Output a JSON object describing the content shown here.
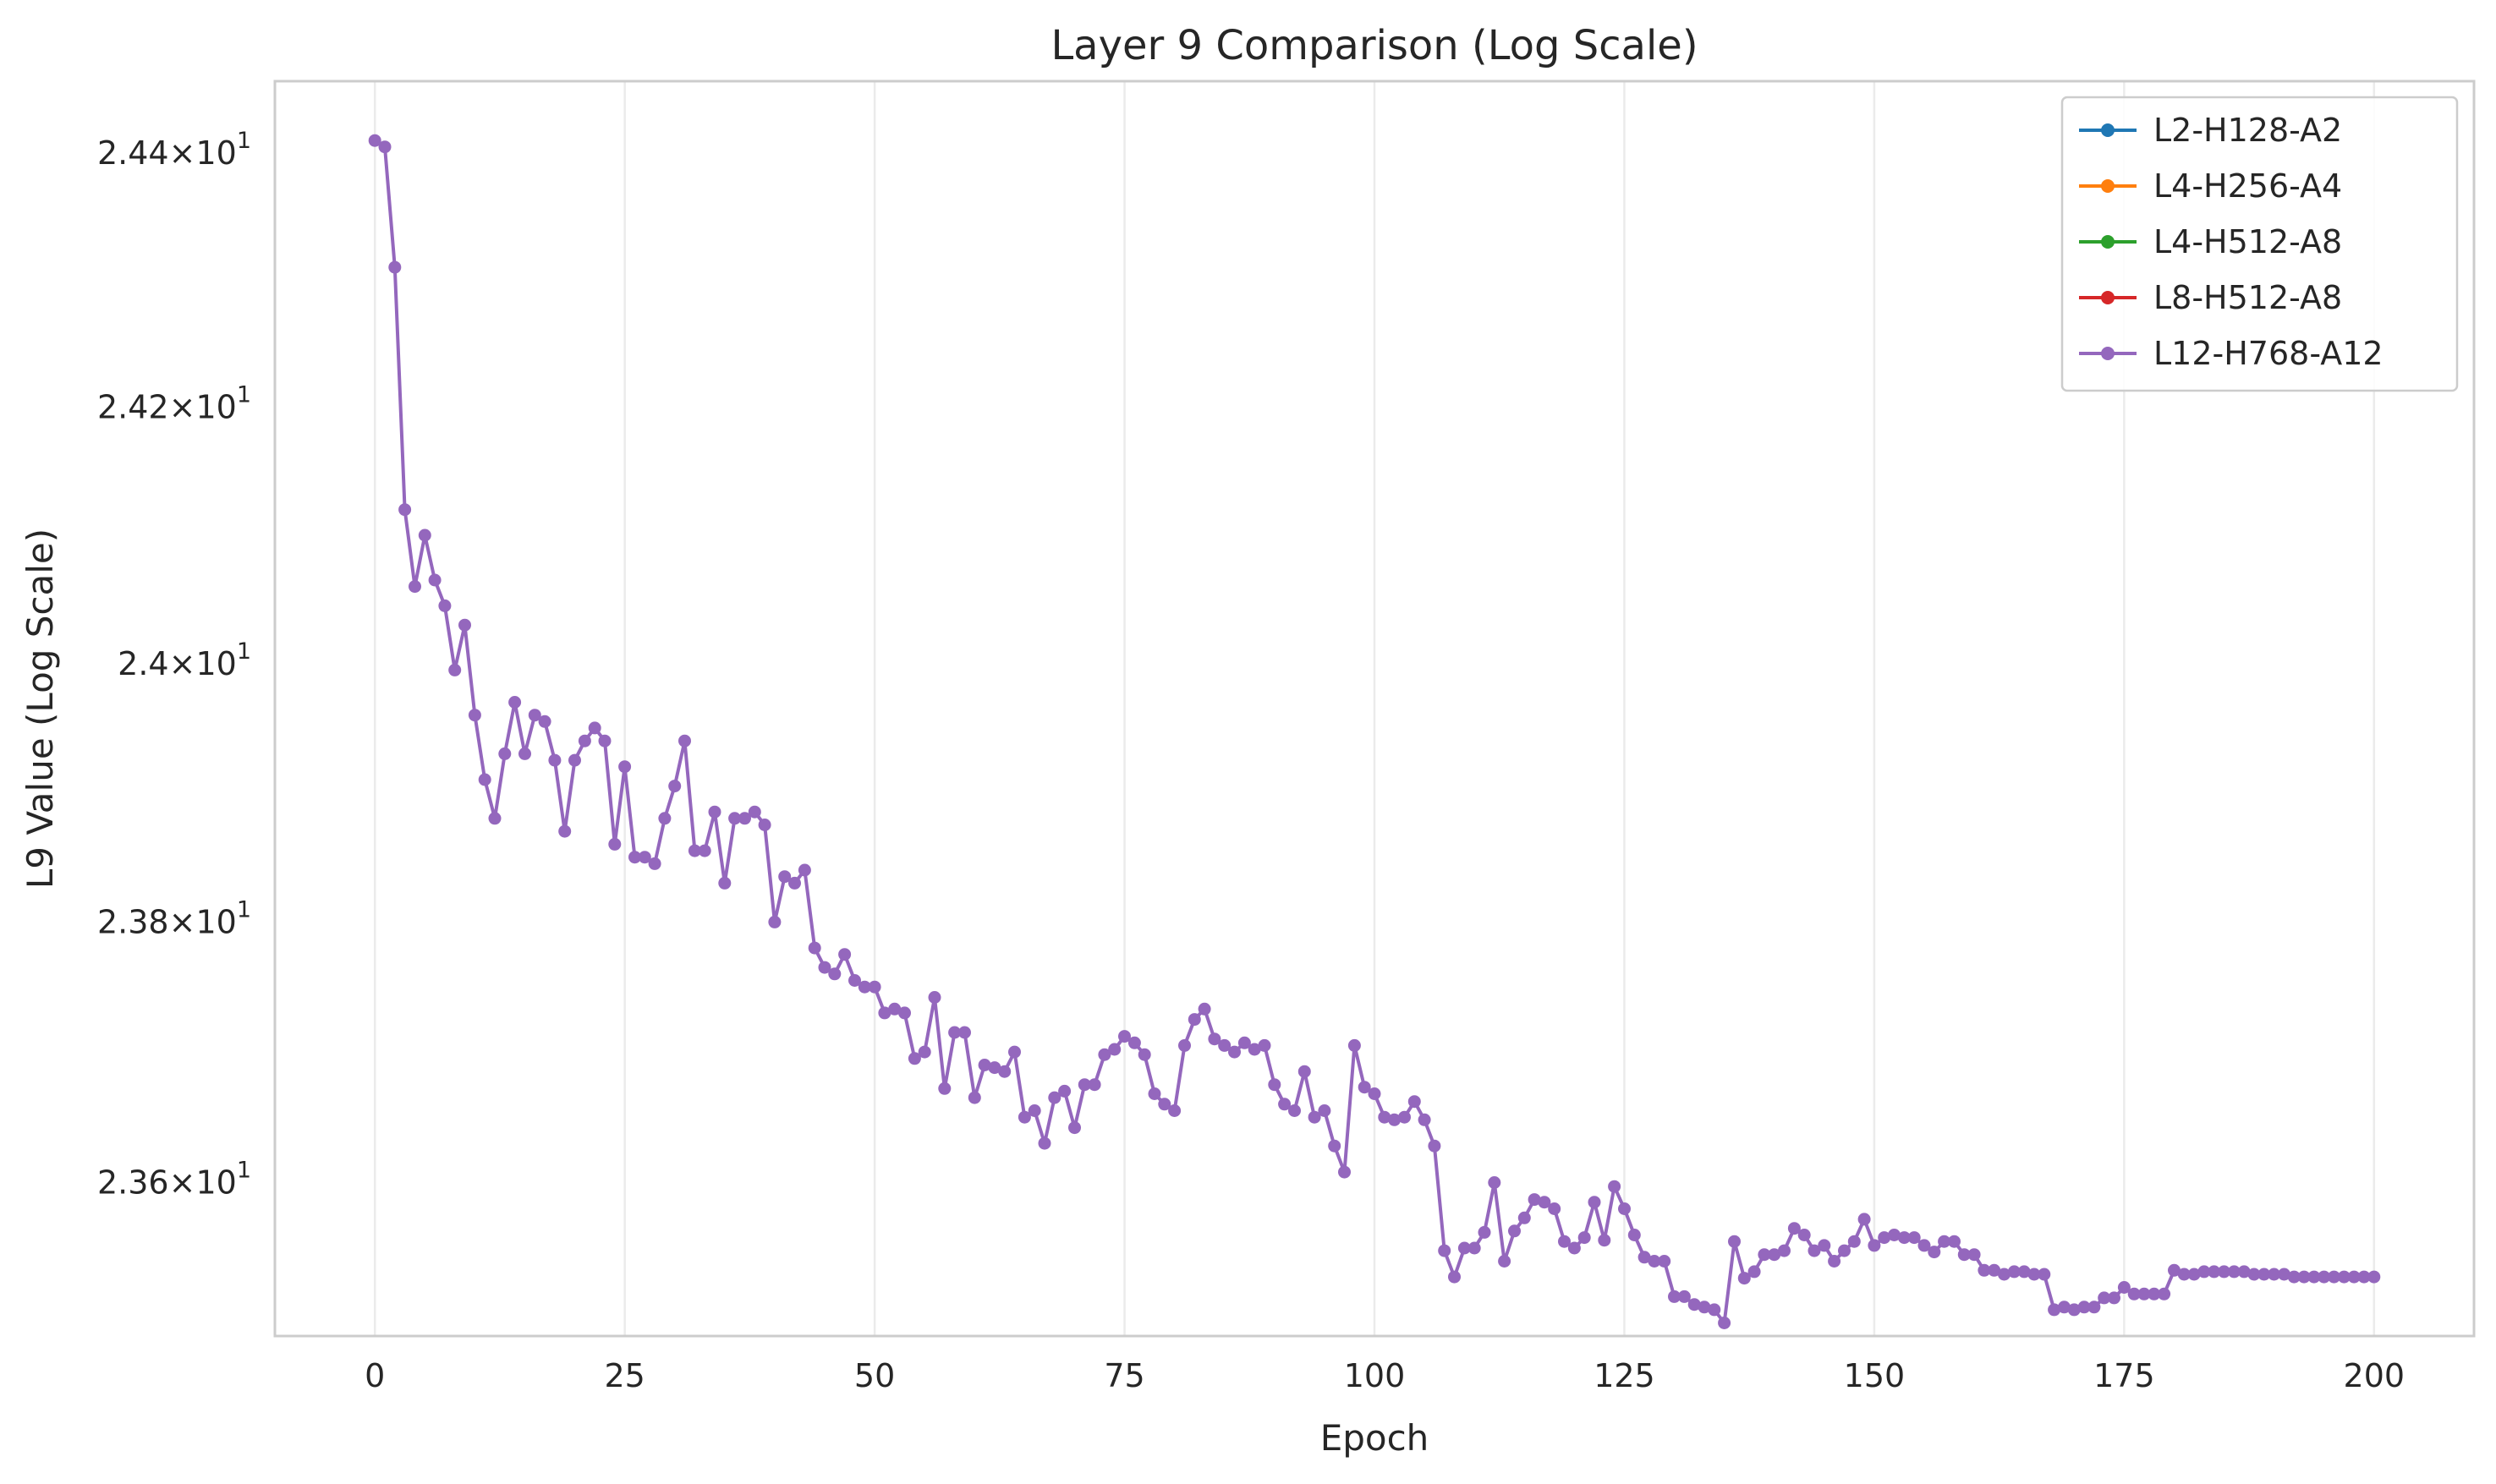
{
  "chart_data": {
    "type": "line",
    "title": "Layer 9 Comparison (Log Scale)",
    "xlabel": "Epoch",
    "ylabel": "L9 Value (Log Scale)",
    "yscale": "log",
    "xlim": [
      -10,
      210
    ],
    "ylim": [
      23.483,
      24.457
    ],
    "grid": "vertical",
    "legend_position": "top-right",
    "x_ticks": [
      0,
      25,
      50,
      75,
      100,
      125,
      150,
      175,
      200
    ],
    "x_tick_labels": [
      "0",
      "25",
      "50",
      "75",
      "100",
      "125",
      "150",
      "175",
      "200"
    ],
    "y_ticks": [
      {
        "value": 23.6,
        "mantissa": "2.36",
        "times": "×",
        "base": "10",
        "exp": "1"
      },
      {
        "value": 23.8,
        "mantissa": "2.38",
        "times": "×",
        "base": "10",
        "exp": "1"
      },
      {
        "value": 24.0,
        "mantissa": "2.4",
        "times": "×",
        "base": "10",
        "exp": "1"
      },
      {
        "value": 24.2,
        "mantissa": "2.42",
        "times": "×",
        "base": "10",
        "exp": "1"
      },
      {
        "value": 24.4,
        "mantissa": "2.44",
        "times": "×",
        "base": "10",
        "exp": "1"
      }
    ],
    "series": [
      {
        "name": "L2-H128-A2",
        "color": "#1f77b4",
        "values": []
      },
      {
        "name": "L4-H256-A4",
        "color": "#ff7f0e",
        "values": []
      },
      {
        "name": "L4-H512-A8",
        "color": "#2ca02c",
        "values": []
      },
      {
        "name": "L8-H512-A8",
        "color": "#d62728",
        "values": []
      },
      {
        "name": "L12-H768-A12",
        "color": "#9467bd",
        "values": [
          24.41,
          24.405,
          24.31,
          24.12,
          24.06,
          24.1,
          24.065,
          24.045,
          23.995,
          24.03,
          23.96,
          23.91,
          23.88,
          23.93,
          23.97,
          23.93,
          23.96,
          23.955,
          23.925,
          23.87,
          23.925,
          23.94,
          23.95,
          23.94,
          23.86,
          23.92,
          23.85,
          23.85,
          23.845,
          23.88,
          23.905,
          23.94,
          23.855,
          23.855,
          23.885,
          23.83,
          23.88,
          23.88,
          23.885,
          23.875,
          23.8,
          23.835,
          23.83,
          23.84,
          23.78,
          23.765,
          23.76,
          23.775,
          23.755,
          23.75,
          23.75,
          23.73,
          23.733,
          23.73,
          23.695,
          23.7,
          23.742,
          23.672,
          23.715,
          23.715,
          23.665,
          23.69,
          23.688,
          23.685,
          23.7,
          23.65,
          23.655,
          23.63,
          23.665,
          23.67,
          23.642,
          23.675,
          23.675,
          23.698,
          23.702,
          23.712,
          23.707,
          23.698,
          23.668,
          23.66,
          23.655,
          23.705,
          23.725,
          23.733,
          23.71,
          23.705,
          23.7,
          23.707,
          23.702,
          23.705,
          23.675,
          23.66,
          23.655,
          23.685,
          23.65,
          23.655,
          23.628,
          23.608,
          23.705,
          23.673,
          23.668,
          23.65,
          23.648,
          23.65,
          23.662,
          23.648,
          23.628,
          23.548,
          23.528,
          23.55,
          23.55,
          23.562,
          23.6,
          23.54,
          23.563,
          23.573,
          23.587,
          23.585,
          23.58,
          23.555,
          23.55,
          23.558,
          23.585,
          23.556,
          23.597,
          23.58,
          23.56,
          23.543,
          23.54,
          23.54,
          23.513,
          23.513,
          23.507,
          23.505,
          23.503,
          23.493,
          23.555,
          23.527,
          23.532,
          23.545,
          23.545,
          23.548,
          23.565,
          23.56,
          23.548,
          23.552,
          23.54,
          23.548,
          23.555,
          23.572,
          23.552,
          23.558,
          23.56,
          23.558,
          23.558,
          23.552,
          23.547,
          23.555,
          23.555,
          23.545,
          23.545,
          23.533,
          23.533,
          23.53,
          23.532,
          23.532,
          23.53,
          23.53,
          23.503,
          23.505,
          23.503,
          23.505,
          23.505,
          23.512,
          23.512,
          23.52,
          23.515,
          23.515,
          23.515,
          23.515,
          23.533,
          23.53,
          23.53,
          23.532,
          23.532,
          23.532,
          23.532,
          23.532,
          23.53,
          23.53,
          23.53,
          23.53,
          23.528,
          23.528,
          23.528,
          23.528,
          23.528,
          23.528,
          23.528,
          23.528,
          23.528
        ]
      }
    ]
  }
}
